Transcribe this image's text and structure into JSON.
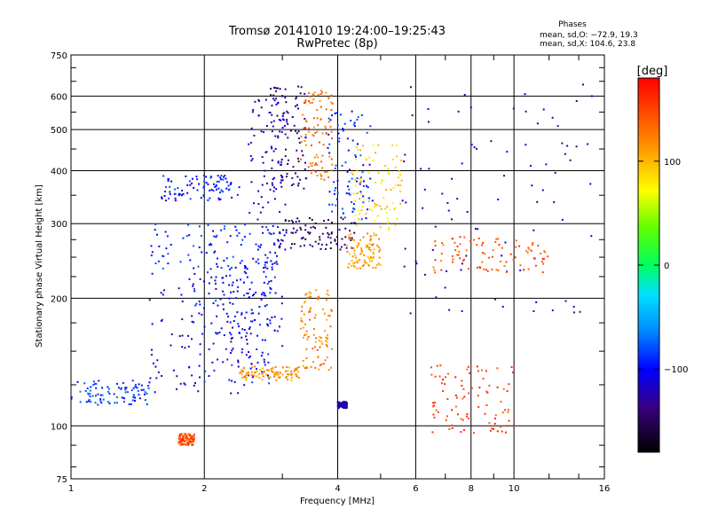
{
  "chart_data": {
    "type": "scatter",
    "title": "Tromsø 20141010 19:24:00–19:25:43",
    "subtitle": "RwPretec (8p)",
    "xlabel": "Frequency [MHz]",
    "ylabel": "Stationary phase Virtual Height [km]",
    "xscale": "log",
    "yscale": "log",
    "xlim": [
      1,
      16
    ],
    "ylim": [
      75,
      750
    ],
    "x_ticks": [
      1,
      2,
      4,
      6,
      8,
      10,
      16
    ],
    "x_tick_labels": [
      "1",
      "2",
      "4",
      "6",
      "8",
      "10",
      "16"
    ],
    "y_ticks": [
      75,
      100,
      200,
      300,
      400,
      500,
      600,
      750
    ],
    "y_tick_labels": [
      "75",
      "100",
      "200",
      "300",
      "400",
      "500",
      "600",
      "750"
    ],
    "grid": true,
    "stats": {
      "header": "Phases",
      "line1": "mean, sd,O: −72.9, 19.3",
      "line2": "mean, sd,X: 104.6, 23.8"
    },
    "colorbar": {
      "label": "[deg]",
      "range": [
        -180,
        180
      ],
      "ticks": [
        100,
        0,
        -100
      ],
      "tick_labels": [
        "100",
        "0",
        "−100"
      ]
    },
    "point_groups": [
      {
        "x": [
          1.0,
          1.5
        ],
        "y": [
          112,
          128
        ],
        "phase": -85
      },
      {
        "x": [
          1.5,
          2.6
        ],
        "y": [
          118,
          235
        ],
        "phase": -120
      },
      {
        "x": [
          1.8,
          2.9
        ],
        "y": [
          125,
          240
        ],
        "phase": -95
      },
      {
        "x": [
          2.4,
          3.3
        ],
        "y": [
          128,
          138
        ],
        "phase": 115
      },
      {
        "x": [
          3.3,
          3.9
        ],
        "y": [
          135,
          210
        ],
        "phase": 120
      },
      {
        "x": [
          2.2,
          3.0
        ],
        "y": [
          140,
          250
        ],
        "phase": -105
      },
      {
        "x": [
          1.5,
          3.0
        ],
        "y": [
          235,
          300
        ],
        "phase": -90
      },
      {
        "x": [
          1.6,
          2.4
        ],
        "y": [
          340,
          390
        ],
        "phase": -95
      },
      {
        "x": [
          2.8,
          3.4
        ],
        "y": [
          360,
          640
        ],
        "phase": -140
      },
      {
        "x": [
          2.5,
          3.1
        ],
        "y": [
          240,
          600
        ],
        "phase": -115
      },
      {
        "x": [
          3.3,
          3.9
        ],
        "y": [
          380,
          620
        ],
        "phase": 130
      },
      {
        "x": [
          3.8,
          4.8
        ],
        "y": [
          300,
          560
        ],
        "phase": -90
      },
      {
        "x": [
          4.3,
          5.6
        ],
        "y": [
          290,
          460
        ],
        "phase": 85
      },
      {
        "x": [
          2.9,
          4.4
        ],
        "y": [
          260,
          310
        ],
        "phase": -150
      },
      {
        "x": [
          4.2,
          5.0
        ],
        "y": [
          235,
          285
        ],
        "phase": 110
      },
      {
        "x": [
          5.6,
          15
        ],
        "y": [
          180,
          650
        ],
        "phase": -120
      },
      {
        "x": [
          6.5,
          12
        ],
        "y": [
          230,
          280
        ],
        "phase": 140
      },
      {
        "x": [
          6.5,
          10
        ],
        "y": [
          95,
          140
        ],
        "phase": 150
      },
      {
        "x": [
          1.75,
          1.9
        ],
        "y": [
          90,
          96
        ],
        "phase": 145
      },
      {
        "x": [
          4.0,
          4.2
        ],
        "y": [
          110,
          114
        ],
        "phase": -125
      }
    ]
  }
}
